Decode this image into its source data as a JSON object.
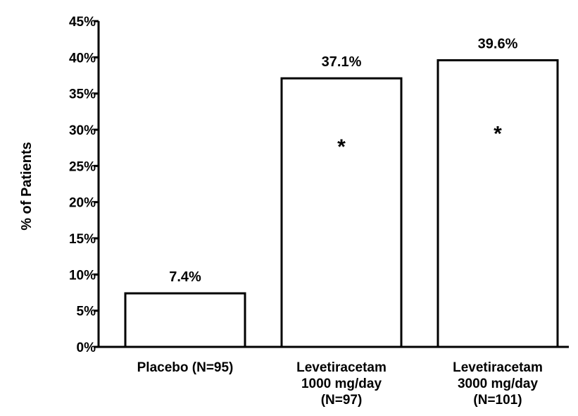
{
  "chart_data": {
    "type": "bar",
    "title": "",
    "xlabel": "",
    "ylabel": "% of Patients",
    "ylim": [
      0,
      45
    ],
    "y_ticks": [
      "0%",
      "5%",
      "10%",
      "15%",
      "20%",
      "25%",
      "30%",
      "35%",
      "40%",
      "45%"
    ],
    "categories": [
      [
        "Placebo (N=95)"
      ],
      [
        "Levetiracetam",
        "1000 mg/day",
        "(N=97)"
      ],
      [
        "Levetiracetam",
        "3000 mg/day",
        "(N=101)"
      ]
    ],
    "values": [
      7.4,
      37.1,
      39.6
    ],
    "data_labels": [
      "7.4%",
      "37.1%",
      "39.6%"
    ],
    "annotations": [
      "",
      "*",
      "*"
    ],
    "grid": false,
    "legend": "none",
    "colors": {
      "bar_fill": "#ffffff",
      "bar_stroke": "#000000",
      "text": "#000000"
    }
  }
}
